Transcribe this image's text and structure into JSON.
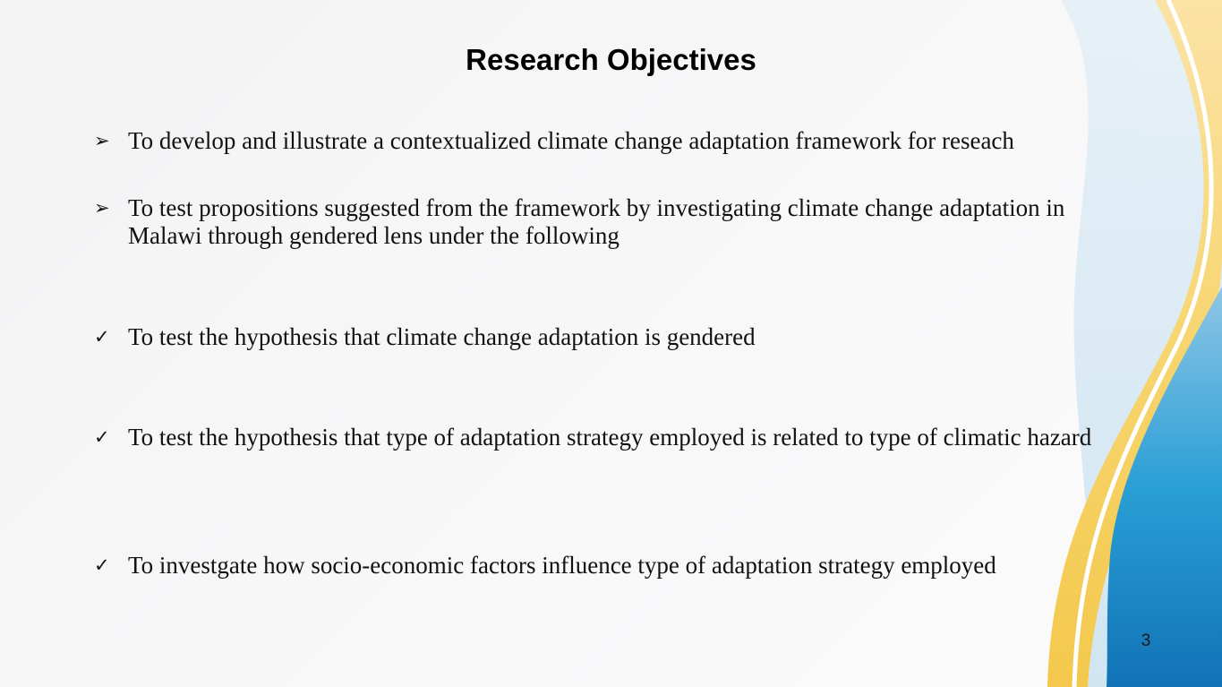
{
  "slide": {
    "title": "Research Objectives",
    "page_number": "3",
    "colors": {
      "title": "#000000",
      "accent_blue": "#1f8ec8",
      "accent_yellow": "#f6d36a",
      "accent_light_blue": "#cfe3f1"
    },
    "items": [
      {
        "bullet_icon": "arrowhead-bullet-icon",
        "bullet_glyph": "➢",
        "text": "To develop and illustrate a contextualized climate change adaptation framework for reseach"
      },
      {
        "bullet_icon": "arrowhead-bullet-icon",
        "bullet_glyph": "➢",
        "text": "To test propositions suggested from the framework by investigating climate change adaptation in Malawi through gendered lens under the following"
      },
      {
        "bullet_icon": "checkmark-bullet-icon",
        "bullet_glyph": "✓",
        "text": "To test the hypothesis that climate change adaptation is gendered"
      },
      {
        "bullet_icon": "checkmark-bullet-icon",
        "bullet_glyph": "✓",
        "text": "To test the hypothesis that type of adaptation strategy employed is related to type of climatic hazard"
      },
      {
        "bullet_icon": "checkmark-bullet-icon",
        "bullet_glyph": "✓",
        "text": "To investgate how socio-economic factors influence type of adaptation strategy employed"
      }
    ]
  }
}
